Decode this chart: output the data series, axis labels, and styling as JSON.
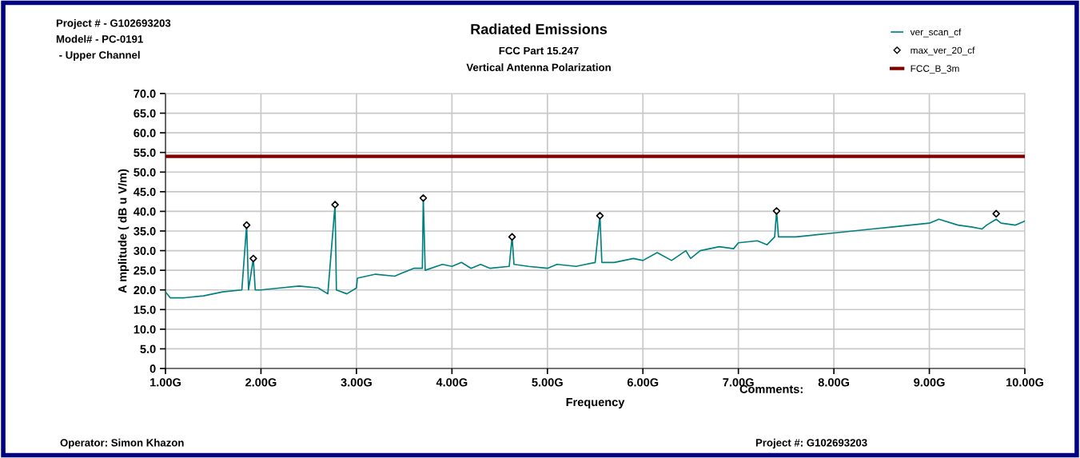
{
  "chart_data": {
    "type": "line",
    "title": "Radiated Emissions",
    "subtitle": "FCC Part 15.247\nVertical Antenna Polarization",
    "xlabel": "Frequency",
    "ylabel": "A mplitude ( dB u V/m)",
    "annotations": [
      "Project # - G102693203\nModel# - PC-0191\n - Upper Channel",
      "Comments:",
      "Operator: Simon Khazon",
      "Project #: G102693203"
    ],
    "xlim": [
      1,
      10
    ],
    "xticks": [
      {
        "value": 1,
        "label": "1.00G"
      },
      {
        "value": 2,
        "label": "2.00G"
      },
      {
        "value": 3,
        "label": "3.00G"
      },
      {
        "value": 4,
        "label": "4.00G"
      },
      {
        "value": 5,
        "label": "5.00G"
      },
      {
        "value": 6,
        "label": "6.00G"
      },
      {
        "value": 7,
        "label": "7.00G"
      },
      {
        "value": 8,
        "label": "8.00G"
      },
      {
        "value": 9,
        "label": "9.00G"
      },
      {
        "value": 10,
        "label": "10.00G"
      }
    ],
    "ylim": [
      0,
      70
    ],
    "yticks": [
      {
        "value": 0,
        "label": "0"
      },
      {
        "value": 5,
        "label": "5.0"
      },
      {
        "value": 10,
        "label": "10.0"
      },
      {
        "value": 15,
        "label": "15.0"
      },
      {
        "value": 20,
        "label": "20.0"
      },
      {
        "value": 25,
        "label": "25.0"
      },
      {
        "value": 30,
        "label": "30.0"
      },
      {
        "value": 35,
        "label": "35.0"
      },
      {
        "value": 40,
        "label": "40.0"
      },
      {
        "value": 45,
        "label": "45.0"
      },
      {
        "value": 50,
        "label": "50.0"
      },
      {
        "value": 55,
        "label": "55.0"
      },
      {
        "value": 60,
        "label": "60.0"
      },
      {
        "value": 65,
        "label": "65.0"
      },
      {
        "value": 70,
        "label": "70.0"
      }
    ],
    "grid": true,
    "legend": "top right",
    "series": [
      {
        "name": "ver_scan_cf",
        "color": "#008080",
        "marker": "none",
        "x": [
          1.0,
          1.05,
          1.2,
          1.4,
          1.5,
          1.6,
          1.8,
          1.85,
          1.87,
          1.92,
          1.94,
          2.0,
          2.2,
          2.4,
          2.6,
          2.7,
          2.776,
          2.79,
          2.9,
          3.0,
          3.01,
          3.2,
          3.4,
          3.5,
          3.6,
          3.69,
          3.7,
          3.72,
          3.9,
          4.0,
          4.1,
          4.2,
          4.3,
          4.4,
          4.6,
          4.63,
          4.65,
          4.8,
          5.0,
          5.1,
          5.3,
          5.4,
          5.5,
          5.55,
          5.57,
          5.7,
          5.9,
          6.0,
          6.15,
          6.3,
          6.45,
          6.5,
          6.6,
          6.8,
          6.95,
          7.0,
          7.2,
          7.3,
          7.38,
          7.4,
          7.42,
          7.6,
          7.8,
          8.0,
          8.2,
          8.4,
          8.6,
          8.8,
          9.0,
          9.1,
          9.3,
          9.45,
          9.55,
          9.6,
          9.7,
          9.75,
          9.9,
          10.0
        ],
        "values": [
          19.5,
          18,
          18,
          18.5,
          19,
          19.5,
          20,
          36.5,
          20,
          28,
          20,
          20,
          20.5,
          21,
          20.5,
          19,
          41.7,
          20,
          19,
          20.5,
          23,
          24,
          23.5,
          24.5,
          25.5,
          25.5,
          43.4,
          25,
          26.5,
          26,
          27,
          25.5,
          26.5,
          25.5,
          26,
          33.5,
          26.5,
          26,
          25.5,
          26.5,
          26,
          26.5,
          27,
          38.9,
          27,
          27,
          28,
          27.5,
          29.5,
          27.5,
          30,
          28,
          30,
          31,
          30.5,
          32,
          32.5,
          31.5,
          33.5,
          40.1,
          33.5,
          33.5,
          34,
          34.5,
          35,
          35.5,
          36,
          36.5,
          37,
          38,
          36.5,
          36,
          35.5,
          36.5,
          38,
          37,
          36.5,
          37.5
        ]
      },
      {
        "name": "max_ver_20_cf",
        "type": "scatter",
        "color": "#000000",
        "marker": "diamond",
        "x": [
          1.85,
          1.92,
          2.776,
          3.7,
          4.63,
          5.55,
          7.4,
          9.7
        ],
        "values": [
          36.5,
          28,
          41.7,
          43.4,
          33.5,
          38.9,
          40.1,
          39.4
        ]
      },
      {
        "name": "FCC_B_3m",
        "type": "line",
        "color": "#800000",
        "marker": "none",
        "x": [
          1,
          10
        ],
        "values": [
          54,
          54
        ]
      }
    ]
  }
}
